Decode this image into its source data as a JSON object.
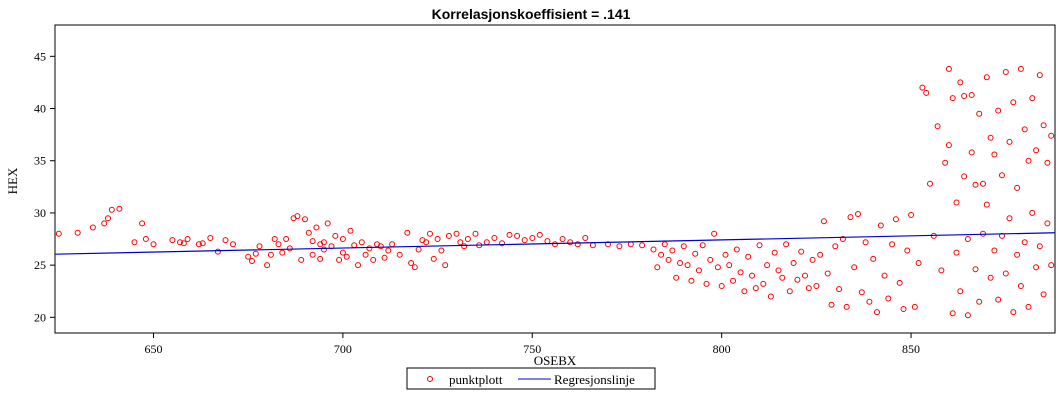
{
  "chart_data": {
    "type": "scatter",
    "title": "Korrelasjonskoeffisient =  .141",
    "xlabel": "OSEBX",
    "ylabel": "HEX",
    "xlim": [
      624,
      888
    ],
    "ylim": [
      18.5,
      48
    ],
    "x_ticks": [
      650,
      700,
      750,
      800,
      850
    ],
    "y_ticks": [
      20,
      25,
      30,
      35,
      40,
      45
    ],
    "grid": false,
    "legend_position": "bottom-center",
    "series": [
      {
        "name": "punktplott",
        "kind": "scatter",
        "color": "#ff0000",
        "points": [
          [
            625,
            28.0
          ],
          [
            630,
            28.1
          ],
          [
            634,
            28.6
          ],
          [
            637,
            29.0
          ],
          [
            638,
            29.5
          ],
          [
            639,
            30.3
          ],
          [
            641,
            30.4
          ],
          [
            645,
            27.2
          ],
          [
            647,
            29.0
          ],
          [
            648,
            27.5
          ],
          [
            650,
            27.0
          ],
          [
            655,
            27.4
          ],
          [
            657,
            27.2
          ],
          [
            658,
            27.1
          ],
          [
            659,
            27.5
          ],
          [
            662,
            27.0
          ],
          [
            663,
            27.1
          ],
          [
            665,
            27.6
          ],
          [
            667,
            26.3
          ],
          [
            669,
            27.4
          ],
          [
            671,
            27.0
          ],
          [
            675,
            25.8
          ],
          [
            676,
            25.4
          ],
          [
            677,
            26.1
          ],
          [
            678,
            26.8
          ],
          [
            680,
            25.0
          ],
          [
            681,
            26.0
          ],
          [
            682,
            27.5
          ],
          [
            683,
            27.0
          ],
          [
            684,
            26.2
          ],
          [
            685,
            27.5
          ],
          [
            686,
            26.6
          ],
          [
            687,
            29.5
          ],
          [
            688,
            29.7
          ],
          [
            689,
            25.5
          ],
          [
            690,
            29.4
          ],
          [
            691,
            28.1
          ],
          [
            692,
            26.0
          ],
          [
            692,
            27.3
          ],
          [
            693,
            28.6
          ],
          [
            694,
            27.0
          ],
          [
            694,
            25.6
          ],
          [
            695,
            26.5
          ],
          [
            695,
            27.2
          ],
          [
            696,
            29.0
          ],
          [
            697,
            26.8
          ],
          [
            698,
            27.8
          ],
          [
            699,
            25.5
          ],
          [
            700,
            26.2
          ],
          [
            700,
            27.5
          ],
          [
            701,
            25.8
          ],
          [
            702,
            28.3
          ],
          [
            703,
            26.9
          ],
          [
            704,
            25.0
          ],
          [
            705,
            27.2
          ],
          [
            706,
            26.0
          ],
          [
            707,
            26.6
          ],
          [
            708,
            25.5
          ],
          [
            709,
            27.0
          ],
          [
            710,
            26.8
          ],
          [
            711,
            25.7
          ],
          [
            712,
            26.4
          ],
          [
            713,
            27.0
          ],
          [
            715,
            26.0
          ],
          [
            717,
            28.1
          ],
          [
            718,
            25.2
          ],
          [
            719,
            24.8
          ],
          [
            720,
            26.5
          ],
          [
            721,
            27.4
          ],
          [
            722,
            27.2
          ],
          [
            723,
            28.0
          ],
          [
            724,
            25.6
          ],
          [
            725,
            27.5
          ],
          [
            726,
            26.4
          ],
          [
            727,
            25.0
          ],
          [
            728,
            27.8
          ],
          [
            730,
            28.0
          ],
          [
            731,
            27.2
          ],
          [
            732,
            26.8
          ],
          [
            733,
            27.5
          ],
          [
            735,
            28.0
          ],
          [
            736,
            26.9
          ],
          [
            738,
            27.2
          ],
          [
            740,
            27.6
          ],
          [
            742,
            27.1
          ],
          [
            744,
            27.9
          ],
          [
            746,
            27.8
          ],
          [
            748,
            27.4
          ],
          [
            750,
            27.6
          ],
          [
            752,
            27.9
          ],
          [
            754,
            27.3
          ],
          [
            756,
            27.0
          ],
          [
            758,
            27.5
          ],
          [
            760,
            27.2
          ],
          [
            762,
            27.0
          ],
          [
            764,
            27.6
          ],
          [
            766,
            26.9
          ],
          [
            770,
            27.0
          ],
          [
            773,
            26.8
          ],
          [
            776,
            27.0
          ],
          [
            779,
            26.9
          ],
          [
            782,
            26.5
          ],
          [
            783,
            24.8
          ],
          [
            784,
            26.0
          ],
          [
            785,
            27.0
          ],
          [
            786,
            25.5
          ],
          [
            787,
            26.4
          ],
          [
            788,
            23.8
          ],
          [
            789,
            25.2
          ],
          [
            790,
            26.8
          ],
          [
            791,
            25.0
          ],
          [
            792,
            23.5
          ],
          [
            793,
            26.1
          ],
          [
            794,
            24.5
          ],
          [
            795,
            26.9
          ],
          [
            796,
            23.2
          ],
          [
            797,
            25.5
          ],
          [
            798,
            28.0
          ],
          [
            799,
            24.8
          ],
          [
            800,
            23.0
          ],
          [
            801,
            26.0
          ],
          [
            802,
            25.0
          ],
          [
            803,
            23.5
          ],
          [
            804,
            26.5
          ],
          [
            805,
            24.3
          ],
          [
            806,
            22.5
          ],
          [
            807,
            25.8
          ],
          [
            808,
            24.0
          ],
          [
            809,
            22.8
          ],
          [
            810,
            26.9
          ],
          [
            811,
            23.2
          ],
          [
            812,
            25.0
          ],
          [
            813,
            22.0
          ],
          [
            814,
            26.2
          ],
          [
            815,
            24.5
          ],
          [
            816,
            23.8
          ],
          [
            817,
            27.0
          ],
          [
            818,
            22.5
          ],
          [
            819,
            25.2
          ],
          [
            820,
            23.6
          ],
          [
            821,
            26.3
          ],
          [
            822,
            24.0
          ],
          [
            823,
            22.8
          ],
          [
            824,
            25.5
          ],
          [
            825,
            23.0
          ],
          [
            826,
            26.0
          ],
          [
            827,
            29.2
          ],
          [
            828,
            24.2
          ],
          [
            829,
            21.2
          ],
          [
            830,
            26.8
          ],
          [
            831,
            22.7
          ],
          [
            832,
            27.5
          ],
          [
            833,
            21.0
          ],
          [
            834,
            29.6
          ],
          [
            835,
            24.8
          ],
          [
            836,
            29.9
          ],
          [
            837,
            22.4
          ],
          [
            838,
            27.2
          ],
          [
            839,
            21.5
          ],
          [
            840,
            25.6
          ],
          [
            841,
            20.5
          ],
          [
            842,
            28.8
          ],
          [
            843,
            24.0
          ],
          [
            844,
            21.8
          ],
          [
            845,
            27.0
          ],
          [
            846,
            29.4
          ],
          [
            847,
            23.3
          ],
          [
            848,
            20.8
          ],
          [
            849,
            26.4
          ],
          [
            850,
            29.8
          ],
          [
            851,
            21.0
          ],
          [
            852,
            25.2
          ],
          [
            853,
            42.0
          ],
          [
            854,
            41.5
          ],
          [
            855,
            32.8
          ],
          [
            856,
            27.8
          ],
          [
            857,
            38.3
          ],
          [
            858,
            24.5
          ],
          [
            859,
            34.8
          ],
          [
            860,
            43.8
          ],
          [
            860,
            36.5
          ],
          [
            861,
            20.4
          ],
          [
            861,
            41.0
          ],
          [
            862,
            31.0
          ],
          [
            862,
            26.2
          ],
          [
            863,
            42.5
          ],
          [
            863,
            22.5
          ],
          [
            864,
            41.2
          ],
          [
            864,
            33.5
          ],
          [
            865,
            27.5
          ],
          [
            865,
            20.2
          ],
          [
            866,
            41.3
          ],
          [
            866,
            35.8
          ],
          [
            867,
            24.6
          ],
          [
            867,
            32.7
          ],
          [
            868,
            39.5
          ],
          [
            868,
            21.5
          ],
          [
            869,
            32.8
          ],
          [
            869,
            28.0
          ],
          [
            870,
            43.0
          ],
          [
            870,
            30.8
          ],
          [
            871,
            37.2
          ],
          [
            871,
            23.8
          ],
          [
            872,
            35.6
          ],
          [
            872,
            26.4
          ],
          [
            873,
            39.8
          ],
          [
            873,
            21.7
          ],
          [
            874,
            33.6
          ],
          [
            874,
            27.8
          ],
          [
            875,
            43.5
          ],
          [
            875,
            24.2
          ],
          [
            876,
            36.8
          ],
          [
            876,
            29.5
          ],
          [
            877,
            20.5
          ],
          [
            877,
            40.6
          ],
          [
            878,
            32.4
          ],
          [
            878,
            26.0
          ],
          [
            879,
            43.8
          ],
          [
            879,
            23.0
          ],
          [
            880,
            38.0
          ],
          [
            880,
            27.2
          ],
          [
            881,
            35.0
          ],
          [
            881,
            21.0
          ],
          [
            882,
            41.0
          ],
          [
            882,
            30.0
          ],
          [
            883,
            36.0
          ],
          [
            883,
            24.8
          ],
          [
            884,
            43.2
          ],
          [
            884,
            26.8
          ],
          [
            885,
            38.4
          ],
          [
            885,
            22.2
          ],
          [
            886,
            34.8
          ],
          [
            886,
            29.0
          ],
          [
            887,
            37.4
          ],
          [
            887,
            25.0
          ]
        ]
      },
      {
        "name": "Regresjonslinje",
        "kind": "line",
        "color": "#0000cc",
        "points": [
          [
            624,
            26.05
          ],
          [
            888,
            28.1
          ]
        ]
      }
    ]
  }
}
